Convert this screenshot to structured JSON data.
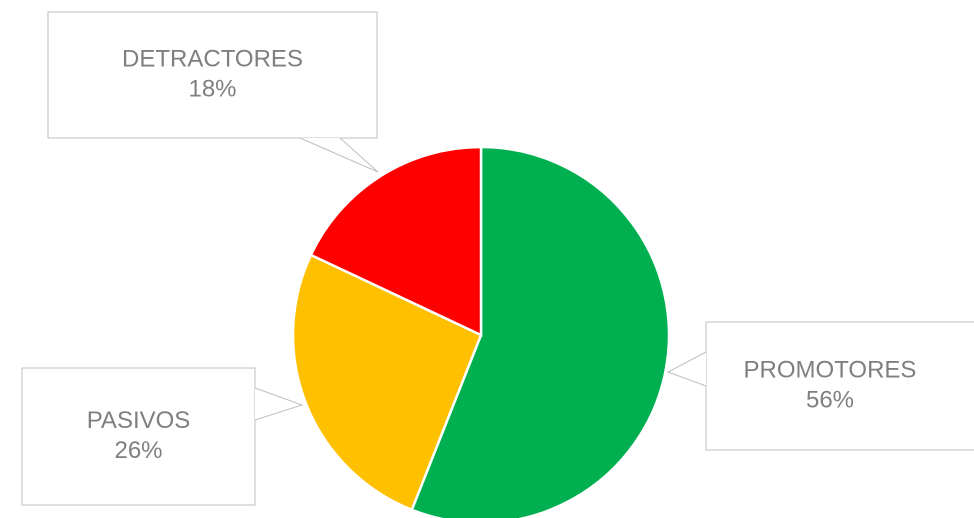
{
  "chart_data": {
    "type": "pie",
    "categories": [
      "PROMOTORES",
      "PASIVOS",
      "DETRACTORES"
    ],
    "values": [
      56,
      26,
      18
    ],
    "value_labels": [
      "56%",
      "26%",
      "18%"
    ],
    "colors": [
      "#00b050",
      "#ffc000",
      "#ff0000"
    ]
  }
}
